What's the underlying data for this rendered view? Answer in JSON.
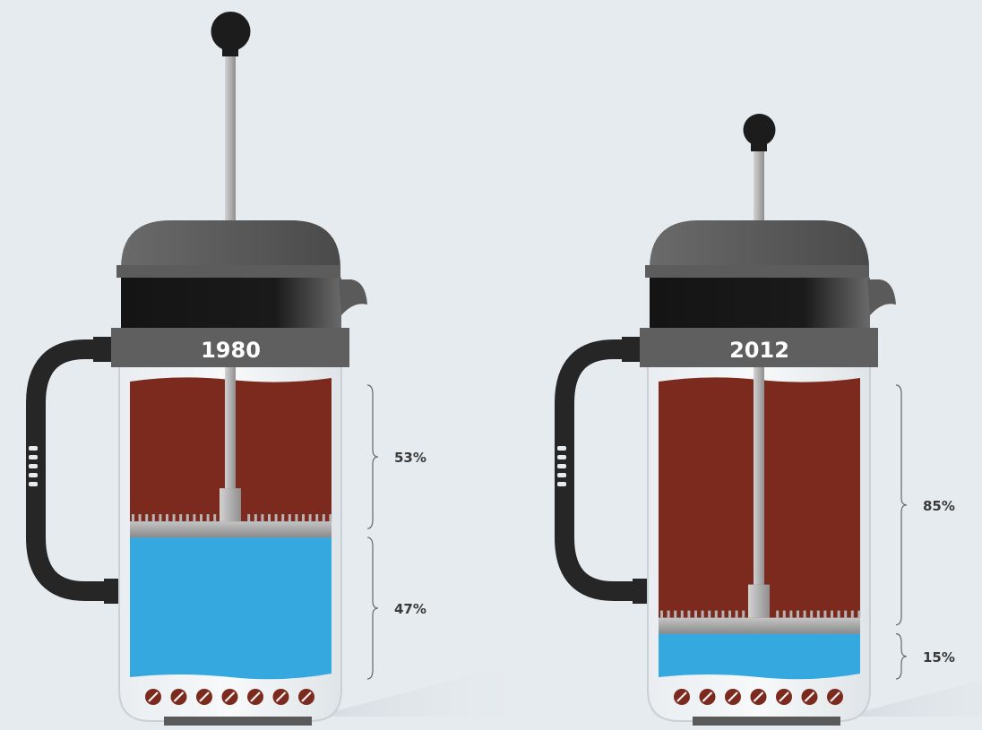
{
  "chart_data": {
    "type": "bar",
    "orientation": "vertical-stacked",
    "categories": [
      "1980",
      "2012"
    ],
    "series": [
      {
        "values": [
          53,
          85
        ],
        "color": "#7b2a1d"
      },
      {
        "values": [
          47,
          15
        ],
        "color": "#35a8e0"
      }
    ],
    "value_labels": [
      [
        "53%",
        "47%"
      ],
      [
        "85%",
        "15%"
      ]
    ],
    "ylim": [
      0,
      100
    ],
    "grid": false,
    "legend": "none"
  },
  "colors": {
    "background": "#e6ebef",
    "lid": "#5a5a5a",
    "collar": "#1c1c1c",
    "band": "#5f5f5f",
    "handle": "#262626",
    "rod": "#a9a9a9",
    "bean": "#7b2a1d"
  },
  "icons": {
    "press": "french-press-icon",
    "bean": "coffee-bean-icon"
  }
}
